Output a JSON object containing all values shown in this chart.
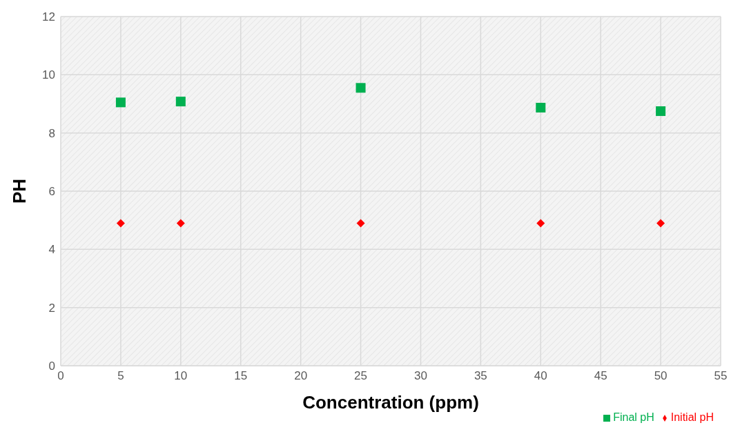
{
  "chart_data": {
    "type": "scatter",
    "xlabel": "Concentration (ppm)",
    "ylabel": "PH",
    "xlim": [
      0,
      55
    ],
    "xticks": [
      0,
      5,
      10,
      15,
      20,
      25,
      30,
      35,
      40,
      45,
      50,
      55
    ],
    "ylim": [
      0,
      12
    ],
    "yticks": [
      0,
      2,
      4,
      6,
      8,
      10,
      12
    ],
    "grid": true,
    "legend": "bottom right",
    "series": [
      {
        "name": "Initial pH",
        "color": "#ff0000",
        "marker": "diamond",
        "x": [
          5,
          10,
          25,
          40,
          50
        ],
        "values": [
          4.9,
          4.9,
          4.9,
          4.9,
          4.9
        ]
      },
      {
        "name": "Final pH",
        "color": "#00b050",
        "marker": "square",
        "x": [
          5,
          10,
          25,
          40,
          50
        ],
        "values": [
          9.05,
          9.08,
          9.55,
          8.87,
          8.75
        ]
      }
    ]
  }
}
